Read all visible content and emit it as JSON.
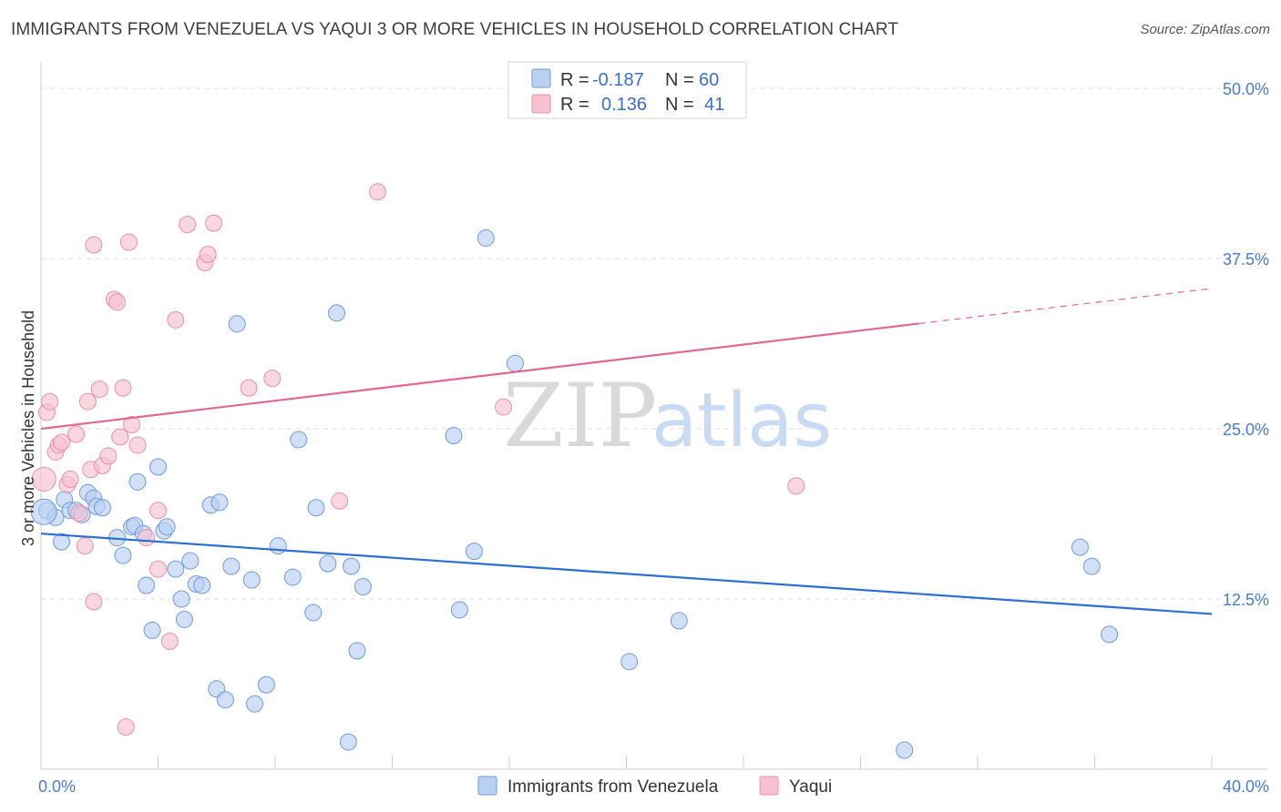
{
  "title": "IMMIGRANTS FROM VENEZUELA VS YAQUI 3 OR MORE VEHICLES IN HOUSEHOLD CORRELATION CHART",
  "source": "Source: ZipAtlas.com",
  "watermark": {
    "zip": "ZIP",
    "atlas": "atlas"
  },
  "colors": {
    "blue_fill": "#b8d0f2",
    "blue_stroke": "#6f9ad8",
    "blue_line": "#2b6fcf",
    "pink_fill": "#f6c1d1",
    "pink_stroke": "#e890ab",
    "pink_line": "#e0698f"
  },
  "legend_top": {
    "rows": [
      {
        "r_label": "R =",
        "r_value": "-0.187",
        "n_label": "N =",
        "n_value": "60"
      },
      {
        "r_label": "R =",
        "r_value": "0.136",
        "n_label": "N =",
        "n_value": "41"
      }
    ]
  },
  "chart_data": {
    "type": "scatter",
    "xlabel": "",
    "ylabel": "3 or more Vehicles in Household",
    "xlim": [
      0,
      40
    ],
    "ylim": [
      0,
      50
    ],
    "x_tick_labels": [
      "0.0%",
      "40.0%"
    ],
    "y_ticks": [
      12.5,
      25.0,
      37.5,
      50.0
    ],
    "y_tick_labels": [
      "12.5%",
      "25.0%",
      "37.5%",
      "50.0%"
    ],
    "legend_placement": "top-center",
    "series": [
      {
        "name": "Immigrants from Venezuela",
        "color": "#b8d0f2",
        "points": [
          [
            0.2,
            19.0
          ],
          [
            0.5,
            18.5
          ],
          [
            0.7,
            16.7
          ],
          [
            0.8,
            19.8
          ],
          [
            1.0,
            19.0
          ],
          [
            1.2,
            19.0
          ],
          [
            1.4,
            18.7
          ],
          [
            1.6,
            20.3
          ],
          [
            1.8,
            19.9
          ],
          [
            1.9,
            19.3
          ],
          [
            2.1,
            19.2
          ],
          [
            2.6,
            17.0
          ],
          [
            2.8,
            15.7
          ],
          [
            3.1,
            17.8
          ],
          [
            3.2,
            17.9
          ],
          [
            3.3,
            21.1
          ],
          [
            3.5,
            17.3
          ],
          [
            3.6,
            13.5
          ],
          [
            3.8,
            10.2
          ],
          [
            4.0,
            22.2
          ],
          [
            4.2,
            17.5
          ],
          [
            4.3,
            17.8
          ],
          [
            4.6,
            14.7
          ],
          [
            4.8,
            12.5
          ],
          [
            4.9,
            11.0
          ],
          [
            5.1,
            15.3
          ],
          [
            5.3,
            13.6
          ],
          [
            5.5,
            13.5
          ],
          [
            5.8,
            19.4
          ],
          [
            6.0,
            5.9
          ],
          [
            6.1,
            19.6
          ],
          [
            6.3,
            5.1
          ],
          [
            6.5,
            14.9
          ],
          [
            6.7,
            32.7
          ],
          [
            7.2,
            13.9
          ],
          [
            7.3,
            4.8
          ],
          [
            7.7,
            6.2
          ],
          [
            8.1,
            16.4
          ],
          [
            8.6,
            14.1
          ],
          [
            8.8,
            24.2
          ],
          [
            9.3,
            11.5
          ],
          [
            9.4,
            19.2
          ],
          [
            9.8,
            15.1
          ],
          [
            10.1,
            33.5
          ],
          [
            10.5,
            2.0
          ],
          [
            10.6,
            14.9
          ],
          [
            10.8,
            8.7
          ],
          [
            11.0,
            13.4
          ],
          [
            14.1,
            24.5
          ],
          [
            14.3,
            11.7
          ],
          [
            14.8,
            16.0
          ],
          [
            15.2,
            39.0
          ],
          [
            16.2,
            29.8
          ],
          [
            20.1,
            7.9
          ],
          [
            21.8,
            10.9
          ],
          [
            29.5,
            1.4
          ],
          [
            35.5,
            16.3
          ],
          [
            35.9,
            14.9
          ],
          [
            36.5,
            9.9
          ],
          [
            0.1,
            18.9
          ]
        ]
      },
      {
        "name": "Yaqui",
        "color": "#f6c1d1",
        "points": [
          [
            0.1,
            21.3
          ],
          [
            0.2,
            26.2
          ],
          [
            0.3,
            27.0
          ],
          [
            0.5,
            23.3
          ],
          [
            0.6,
            23.8
          ],
          [
            0.7,
            24.0
          ],
          [
            0.9,
            20.9
          ],
          [
            1.0,
            21.3
          ],
          [
            1.2,
            24.6
          ],
          [
            1.3,
            18.8
          ],
          [
            1.5,
            16.4
          ],
          [
            1.6,
            27.0
          ],
          [
            1.7,
            22.0
          ],
          [
            1.8,
            12.3
          ],
          [
            1.8,
            38.5
          ],
          [
            2.0,
            27.9
          ],
          [
            2.1,
            22.3
          ],
          [
            2.3,
            23.0
          ],
          [
            2.5,
            34.5
          ],
          [
            2.6,
            34.3
          ],
          [
            2.7,
            24.4
          ],
          [
            2.8,
            28.0
          ],
          [
            3.0,
            38.7
          ],
          [
            3.1,
            25.3
          ],
          [
            3.3,
            23.8
          ],
          [
            2.9,
            3.1
          ],
          [
            3.6,
            17.0
          ],
          [
            4.0,
            19.0
          ],
          [
            4.0,
            14.7
          ],
          [
            4.4,
            9.4
          ],
          [
            4.6,
            33.0
          ],
          [
            5.0,
            40.0
          ],
          [
            5.6,
            37.2
          ],
          [
            5.7,
            37.8
          ],
          [
            5.9,
            40.1
          ],
          [
            7.1,
            28.0
          ],
          [
            7.9,
            28.7
          ],
          [
            10.2,
            19.7
          ],
          [
            11.5,
            42.4
          ],
          [
            15.8,
            26.6
          ],
          [
            25.8,
            20.8
          ]
        ]
      }
    ],
    "trend_lines": [
      {
        "series": "Immigrants from Venezuela",
        "x": [
          0,
          40
        ],
        "y": [
          17.3,
          11.4
        ],
        "dashed_from": null
      },
      {
        "series": "Yaqui",
        "x": [
          0,
          40
        ],
        "y": [
          25.0,
          35.3
        ],
        "dashed_from": 30
      }
    ]
  }
}
